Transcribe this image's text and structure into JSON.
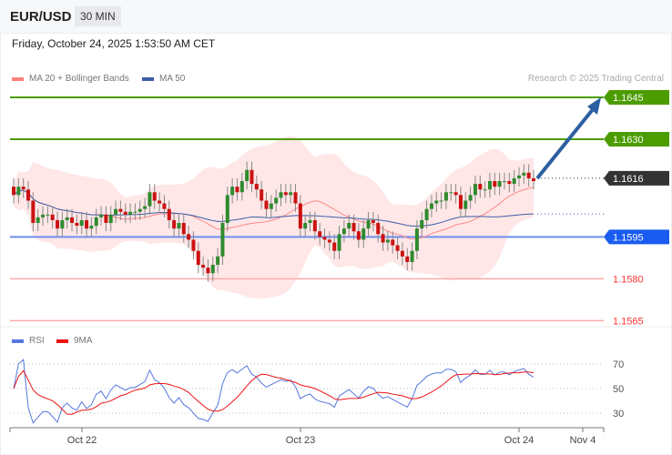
{
  "header": {
    "symbol": "EUR/USD",
    "timeframe": "30 MIN",
    "datetime": "Friday, October 24, 2025 1:53:50 AM CET"
  },
  "legend": {
    "ma20": "MA 20 + Bollinger Bands",
    "ma50": "MA 50",
    "rsi": "RSI",
    "rsi_ma": "9MA"
  },
  "credit": "Research © 2025 Trading Central",
  "colors": {
    "resistance": "#4c9c00",
    "current": "#333333",
    "pivot": "#1a5cf0",
    "support": "#ff3333",
    "bull": "#2e8b2e",
    "bear": "#cc1111",
    "band": "#ffe1e1",
    "ma50": "#3b5ea6",
    "arrow": "#2e5fa3"
  },
  "chart_data": [
    {
      "type": "candlestick",
      "ylim": [
        1.1562,
        1.165
      ],
      "levels": [
        {
          "label": "1.1645",
          "value": 1.1645,
          "kind": "resistance"
        },
        {
          "label": "1.1630",
          "value": 1.163,
          "kind": "resistance"
        },
        {
          "label": "1.1616",
          "value": 1.1616,
          "kind": "current"
        },
        {
          "label": "1.1595",
          "value": 1.1595,
          "kind": "pivot"
        },
        {
          "label": "1.1580",
          "value": 1.158,
          "kind": "support"
        },
        {
          "label": "1.1565",
          "value": 1.1565,
          "kind": "support"
        }
      ],
      "x_ticks": [
        "Oct 22",
        "Oct 23",
        "Oct 24",
        "Nov 4"
      ],
      "target_arrow": {
        "from": 1.1616,
        "to": 1.1645
      },
      "closes": [
        1.161,
        1.1613,
        1.1612,
        1.1608,
        1.16,
        1.1602,
        1.1603,
        1.1603,
        1.1601,
        1.1598,
        1.1601,
        1.1602,
        1.16,
        1.1599,
        1.1601,
        1.1598,
        1.1599,
        1.1602,
        1.1603,
        1.16,
        1.1603,
        1.1605,
        1.1604,
        1.1603,
        1.1604,
        1.1604,
        1.1605,
        1.1606,
        1.1611,
        1.1608,
        1.1607,
        1.1605,
        1.1601,
        1.1598,
        1.16,
        1.1596,
        1.1594,
        1.159,
        1.1585,
        1.1584,
        1.1582,
        1.1585,
        1.1588,
        1.16,
        1.161,
        1.1613,
        1.1611,
        1.1615,
        1.1619,
        1.1614,
        1.1612,
        1.1608,
        1.1605,
        1.1607,
        1.1609,
        1.1611,
        1.161,
        1.1611,
        1.1607,
        1.1598,
        1.16,
        1.1601,
        1.1597,
        1.1595,
        1.1594,
        1.1593,
        1.159,
        1.1596,
        1.1598,
        1.16,
        1.1597,
        1.1594,
        1.1598,
        1.1601,
        1.16,
        1.1596,
        1.1593,
        1.1594,
        1.1592,
        1.159,
        1.1588,
        1.1586,
        1.159,
        1.1598,
        1.1601,
        1.1605,
        1.1607,
        1.1608,
        1.1608,
        1.1611,
        1.1611,
        1.161,
        1.1605,
        1.1608,
        1.161,
        1.1614,
        1.1612,
        1.1612,
        1.1615,
        1.1613,
        1.1615,
        1.1615,
        1.1614,
        1.1616,
        1.1617,
        1.1618,
        1.1616,
        1.1615
      ]
    },
    {
      "type": "line",
      "y_ticks": [
        "70",
        "50",
        "30"
      ],
      "ylim": [
        20,
        80
      ]
    }
  ]
}
